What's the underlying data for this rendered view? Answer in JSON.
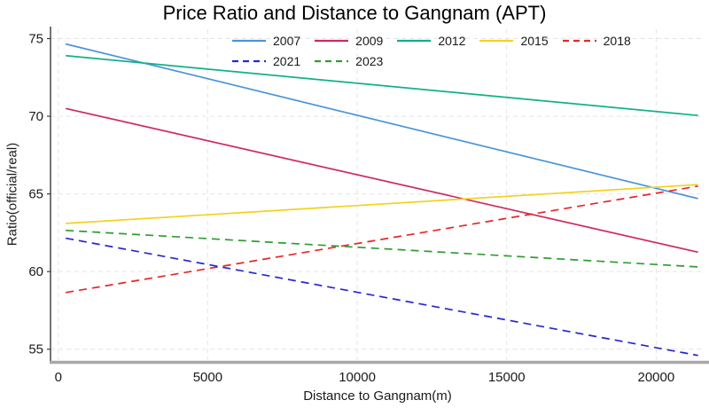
{
  "chart_data": {
    "type": "line",
    "title": "Price Ratio and Distance to Gangnam (APT)",
    "xlabel": "Distance to Gangnam(m)",
    "ylabel": "Ratio(official/real)",
    "xlim": [
      -260,
      21620
    ],
    "ylim": [
      54.3,
      75.6
    ],
    "xticks": [
      0,
      5000,
      10000,
      15000,
      20000
    ],
    "yticks": [
      55,
      60,
      65,
      70,
      75
    ],
    "grid": true,
    "grid_color": "#e5e5e5",
    "axis_color": "#3a3a3a",
    "baseline_color": "#a8a8a8",
    "tick_label_color": "#1a1a1a",
    "legend_position": "top-inside, two rows",
    "x": [
      250,
      21400
    ],
    "series": [
      {
        "name": "2007",
        "color": "#4b94d8",
        "dash": false,
        "values": [
          74.65,
          64.7
        ]
      },
      {
        "name": "2009",
        "color": "#cf2860",
        "dash": false,
        "values": [
          70.5,
          61.25
        ]
      },
      {
        "name": "2012",
        "color": "#0fb286",
        "dash": false,
        "values": [
          73.9,
          70.05
        ]
      },
      {
        "name": "2015",
        "color": "#f2d21f",
        "dash": false,
        "values": [
          63.1,
          65.6
        ]
      },
      {
        "name": "2018",
        "color": "#e52828",
        "dash": true,
        "values": [
          58.65,
          65.5
        ]
      },
      {
        "name": "2021",
        "color": "#2828cf",
        "dash": true,
        "values": [
          62.15,
          54.6
        ]
      },
      {
        "name": "2023",
        "color": "#2f9e2f",
        "dash": true,
        "values": [
          62.65,
          60.3
        ]
      }
    ]
  }
}
